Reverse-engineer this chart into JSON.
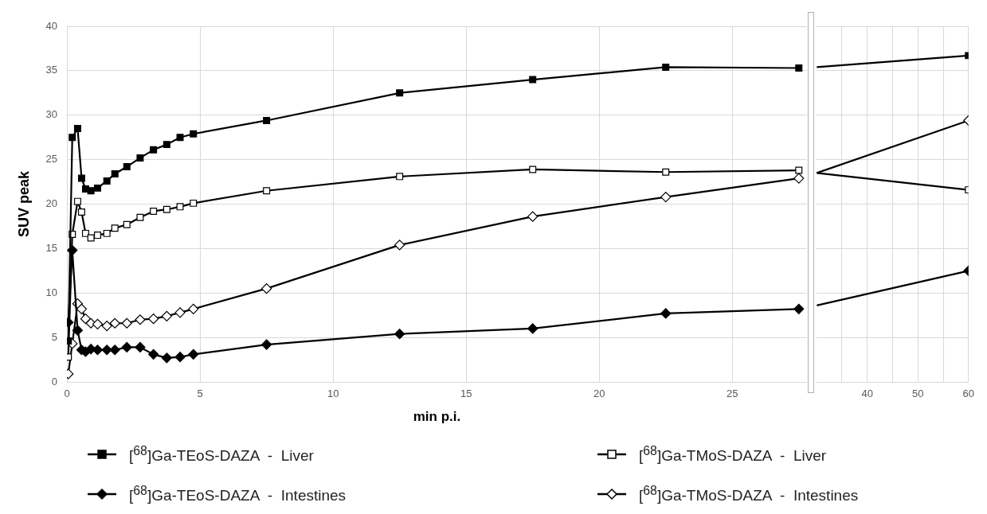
{
  "chart_data": [
    {
      "type": "line",
      "xlabel": "min p.i.",
      "ylabel": "SUV peak",
      "x": [
        0.05,
        0.2,
        0.4,
        0.55,
        0.7,
        0.9,
        1.15,
        1.5,
        1.8,
        2.25,
        2.75,
        3.25,
        3.75,
        4.25,
        4.75,
        7.5,
        12.5,
        17.5,
        22.5,
        27.5
      ],
      "series": [
        {
          "name": "[$^{68}$]Ga-TEoS-DAZA  -  Liver",
          "color": "#000000",
          "marker": "square",
          "values": [
            4.6,
            27.5,
            28.5,
            22.9,
            21.7,
            21.5,
            21.8,
            22.6,
            23.4,
            24.2,
            25.2,
            26.1,
            26.7,
            27.5,
            27.9,
            29.4,
            32.5,
            34.0,
            35.4,
            35.3
          ]
        },
        {
          "name": "[$^{68}$]Ga-TMoS-DAZA  -  Liver",
          "color": "#000000",
          "marker": "square",
          "colors": [
            "#ffffff",
            "#ffffff",
            "#ffffff",
            "#ffffff",
            "#ffffff",
            "#ffffff",
            "#ffffff",
            "#ffffff",
            "#ffffff",
            "#ffffff",
            "#ffffff",
            "#ffffff",
            "#ffffff",
            "#ffffff",
            "#ffffff",
            "#ffffff",
            "#ffffff",
            "#ffffff",
            "#ffffff",
            "#ffffff"
          ],
          "values": [
            2.8,
            16.6,
            20.3,
            19.1,
            16.7,
            16.2,
            16.5,
            16.7,
            17.3,
            17.7,
            18.5,
            19.2,
            19.4,
            19.7,
            20.1,
            21.5,
            23.1,
            23.9,
            23.6,
            23.8
          ]
        },
        {
          "name": "[$^{68}$]Ga-TEoS-DAZA  -  Intestines",
          "color": "#000000",
          "marker": "diamond",
          "values": [
            6.7,
            14.8,
            5.8,
            3.6,
            3.4,
            3.7,
            3.6,
            3.6,
            3.6,
            3.9,
            3.9,
            3.1,
            2.7,
            2.8,
            3.1,
            4.2,
            5.4,
            6.0,
            7.7,
            8.2
          ]
        },
        {
          "name": "[$^{68}$]Ga-TMoS-DAZA  -  Intestines",
          "color": "#000000",
          "marker": "diamond",
          "colors": [
            "#ffffff",
            "#ffffff",
            "#ffffff",
            "#ffffff",
            "#ffffff",
            "#ffffff",
            "#ffffff",
            "#ffffff",
            "#ffffff",
            "#ffffff",
            "#ffffff",
            "#ffffff",
            "#ffffff",
            "#ffffff",
            "#ffffff",
            "#ffffff",
            "#ffffff",
            "#ffffff",
            "#ffffff",
            "#ffffff"
          ],
          "values": [
            0.9,
            4.3,
            8.8,
            8.2,
            7.1,
            6.6,
            6.5,
            6.3,
            6.6,
            6.6,
            7.0,
            7.1,
            7.4,
            7.8,
            8.2,
            10.5,
            15.4,
            18.6,
            20.8,
            22.9
          ]
        }
      ],
      "xlim": [
        0,
        27.8
      ],
      "xticks": [
        0,
        5,
        10,
        15,
        20,
        25
      ],
      "ylim": [
        0,
        40
      ],
      "yticks": [
        0,
        5,
        10,
        15,
        20,
        25,
        30,
        35,
        40
      ],
      "grid": true,
      "legend": "bottom",
      "line_style": "solid"
    },
    {
      "type": "line",
      "x": [
        30,
        60
      ],
      "series": [
        {
          "color": "#000000",
          "marker": "square",
          "colors": [
            null,
            "#000000"
          ],
          "values": [
            35.4,
            36.7
          ]
        },
        {
          "color": "#000000",
          "marker": "square",
          "colors": [
            null,
            "#ffffff"
          ],
          "values": [
            23.5,
            21.6
          ]
        },
        {
          "color": "#000000",
          "marker": "diamond",
          "colors": [
            null,
            "#000000"
          ],
          "values": [
            8.6,
            12.5
          ]
        },
        {
          "color": "#000000",
          "marker": "diamond",
          "colors": [
            null,
            "#ffffff"
          ],
          "values": [
            23.5,
            29.4
          ]
        }
      ],
      "xlim": [
        30,
        60
      ],
      "xticks": [
        {
          "value": 35,
          "label": null
        },
        40,
        {
          "value": 45,
          "label": null
        },
        50,
        {
          "value": 55,
          "label": null
        },
        60
      ],
      "ylim": [
        0,
        40
      ],
      "yticks": [
        0,
        5,
        10,
        15,
        20,
        25,
        30,
        35,
        40
      ],
      "tick_labels": "x",
      "grid": true,
      "line_style": "solid"
    }
  ]
}
